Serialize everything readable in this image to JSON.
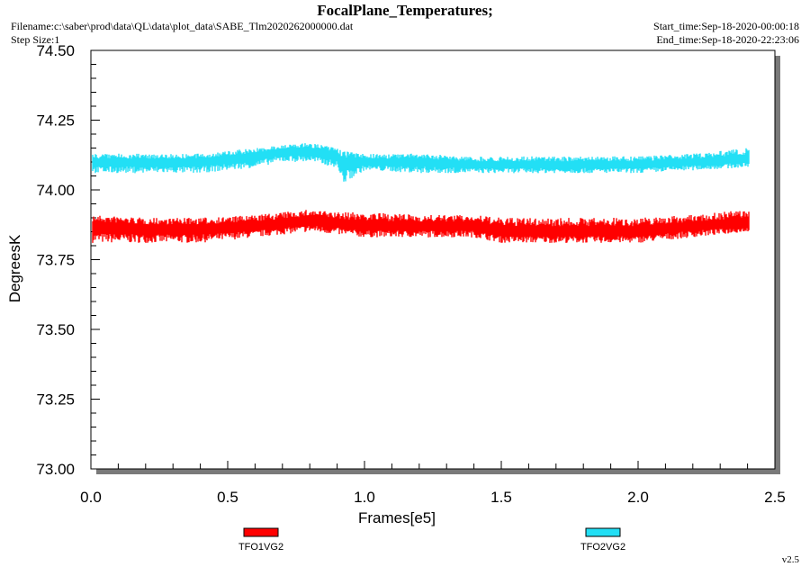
{
  "header": {
    "title": "FocalPlane_Temperatures;",
    "filename": "Filename:c:\\saber\\prod\\data\\QL\\data\\plot_data\\SABE_Tlm2020262000000.dat",
    "step_size": "Step Size:1",
    "start_time": "Start_time:Sep-18-2020-00:00:18",
    "end_time": "End_time:Sep-18-2020-22:23:06"
  },
  "version": "v2.5",
  "chart_data": {
    "type": "line",
    "title": "FocalPlane_Temperatures;",
    "xlabel": "Frames[e5]",
    "ylabel": "DegreesK",
    "xlim": [
      0.0,
      2.5
    ],
    "ylim": [
      73.0,
      74.5
    ],
    "xticks": [
      "0.0",
      "0.5",
      "1.0",
      "1.5",
      "2.0",
      "2.5"
    ],
    "yticks": [
      "73.00",
      "73.25",
      "73.50",
      "73.75",
      "74.00",
      "74.25",
      "74.50"
    ],
    "grid": false,
    "legend_position": "bottom",
    "series": [
      {
        "name": "TFO1VG2",
        "color": "#ff0000",
        "x": [
          0.0,
          0.2,
          0.4,
          0.6,
          0.8,
          0.9,
          1.0,
          1.2,
          1.4,
          1.5,
          1.6,
          1.8,
          2.0,
          2.2,
          2.4
        ],
        "mean": [
          73.87,
          73.86,
          73.86,
          73.87,
          73.89,
          73.88,
          73.87,
          73.87,
          73.87,
          73.85,
          73.85,
          73.85,
          73.85,
          73.87,
          73.88
        ],
        "min": [
          73.81,
          73.81,
          73.81,
          73.83,
          73.85,
          73.84,
          73.83,
          73.83,
          73.83,
          73.81,
          73.81,
          73.81,
          73.81,
          73.83,
          73.85
        ],
        "max": [
          73.91,
          73.9,
          73.9,
          73.91,
          73.93,
          73.92,
          73.92,
          73.91,
          73.91,
          73.9,
          73.9,
          73.9,
          73.9,
          73.91,
          73.93
        ]
      },
      {
        "name": "TFO2VG2",
        "color": "#22dff5",
        "x": [
          0.0,
          0.2,
          0.4,
          0.6,
          0.7,
          0.8,
          0.9,
          0.92,
          1.0,
          1.2,
          1.4,
          1.6,
          1.8,
          2.0,
          2.2,
          2.4
        ],
        "mean": [
          74.1,
          74.1,
          74.1,
          74.12,
          74.14,
          74.14,
          74.12,
          74.1,
          74.1,
          74.1,
          74.09,
          74.09,
          74.09,
          74.09,
          74.1,
          74.11
        ],
        "min": [
          74.06,
          74.06,
          74.06,
          74.08,
          74.1,
          74.1,
          74.08,
          74.02,
          74.07,
          74.06,
          74.06,
          74.06,
          74.06,
          74.06,
          74.07,
          74.08
        ],
        "max": [
          74.13,
          74.13,
          74.13,
          74.15,
          74.16,
          74.17,
          74.15,
          74.14,
          74.13,
          74.13,
          74.12,
          74.12,
          74.12,
          74.12,
          74.13,
          74.15
        ]
      }
    ]
  }
}
